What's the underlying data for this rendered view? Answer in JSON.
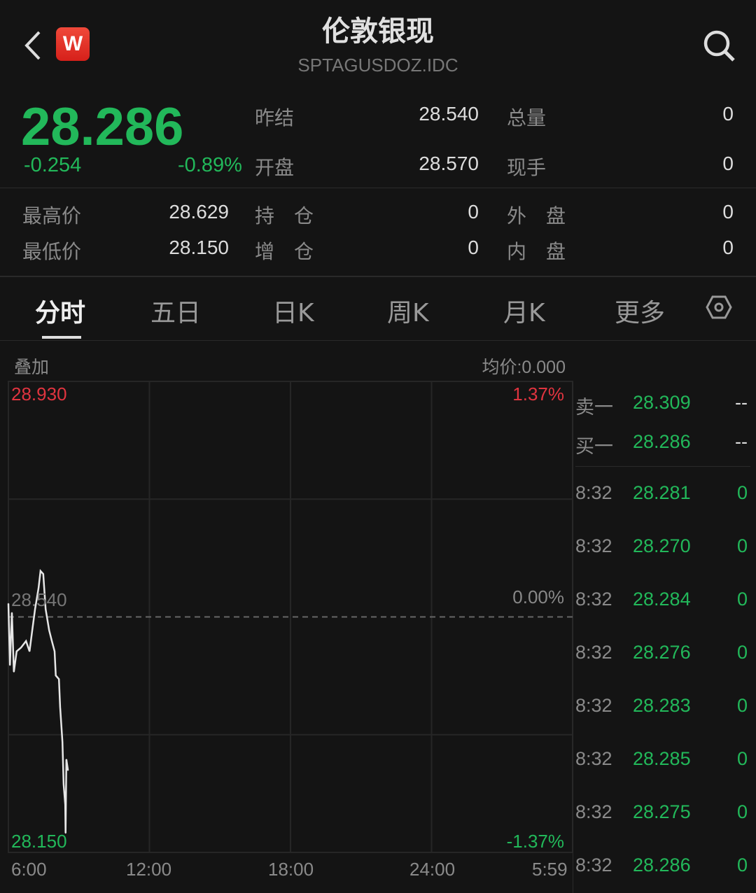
{
  "header": {
    "title": "伦敦银现",
    "code": "SPTAGUSDOZ.IDC",
    "logo": "W"
  },
  "quote": {
    "price": "28.286",
    "change": "-0.254",
    "change_pct": "-0.89%"
  },
  "stats": [
    {
      "label": "昨结",
      "value": "28.540"
    },
    {
      "label": "总量",
      "value": "0"
    },
    {
      "label": "开盘",
      "value": "28.570"
    },
    {
      "label": "现手",
      "value": "0"
    },
    {
      "label": "最高价",
      "value": "28.629"
    },
    {
      "label": "持　仓",
      "value": "0"
    },
    {
      "label": "外　盘",
      "value": "0"
    },
    {
      "label": "最低价",
      "value": "28.150"
    },
    {
      "label": "增　仓",
      "value": "0"
    },
    {
      "label": "内　盘",
      "value": "0"
    }
  ],
  "tabs": [
    "分时",
    "五日",
    "日K",
    "周K",
    "月K",
    "更多"
  ],
  "chart_header": {
    "overlay": "叠加",
    "avg": "均价:0.000"
  },
  "chart_data": {
    "type": "line",
    "x_ticks": [
      "6:00",
      "12:00",
      "18:00",
      "24:00",
      "5:59"
    ],
    "ylim": [
      28.15,
      28.93
    ],
    "y_labels": {
      "top": "28.930",
      "mid": "28.540",
      "bottom": "28.150"
    },
    "pct_labels": {
      "top": "1.37%",
      "mid": "0.00%",
      "bottom": "-1.37%"
    },
    "reference": 28.54,
    "x": [
      "6:00",
      "6:04",
      "6:09",
      "6:14",
      "6:21",
      "6:32",
      "6:45",
      "6:54",
      "7:01",
      "7:08",
      "7:17",
      "7:22",
      "7:29",
      "7:35",
      "7:44",
      "7:51",
      "7:58",
      "8:01",
      "8:09",
      "8:12",
      "8:18",
      "8:21",
      "8:25",
      "8:26",
      "8:28",
      "8:32"
    ],
    "y": [
      28.562,
      28.46,
      28.547,
      28.449,
      28.483,
      28.489,
      28.5,
      28.483,
      28.518,
      28.553,
      28.588,
      28.616,
      28.611,
      28.553,
      28.518,
      28.5,
      28.483,
      28.443,
      28.437,
      28.391,
      28.333,
      28.263,
      28.229,
      28.182,
      28.304,
      28.286
    ]
  },
  "orderbook": {
    "sell": {
      "label": "卖一",
      "price": "28.309",
      "vol": "--"
    },
    "buy": {
      "label": "买一",
      "price": "28.286",
      "vol": "--"
    }
  },
  "trades": [
    {
      "time": "8:32",
      "price": "28.281",
      "vol": "0"
    },
    {
      "time": "8:32",
      "price": "28.270",
      "vol": "0"
    },
    {
      "time": "8:32",
      "price": "28.284",
      "vol": "0"
    },
    {
      "time": "8:32",
      "price": "28.276",
      "vol": "0"
    },
    {
      "time": "8:32",
      "price": "28.283",
      "vol": "0"
    },
    {
      "time": "8:32",
      "price": "28.285",
      "vol": "0"
    },
    {
      "time": "8:32",
      "price": "28.275",
      "vol": "0"
    },
    {
      "time": "8:32",
      "price": "28.286",
      "vol": "0"
    }
  ],
  "colors": {
    "up": "#e0343f",
    "down": "#22b85a",
    "bg": "#141414"
  }
}
